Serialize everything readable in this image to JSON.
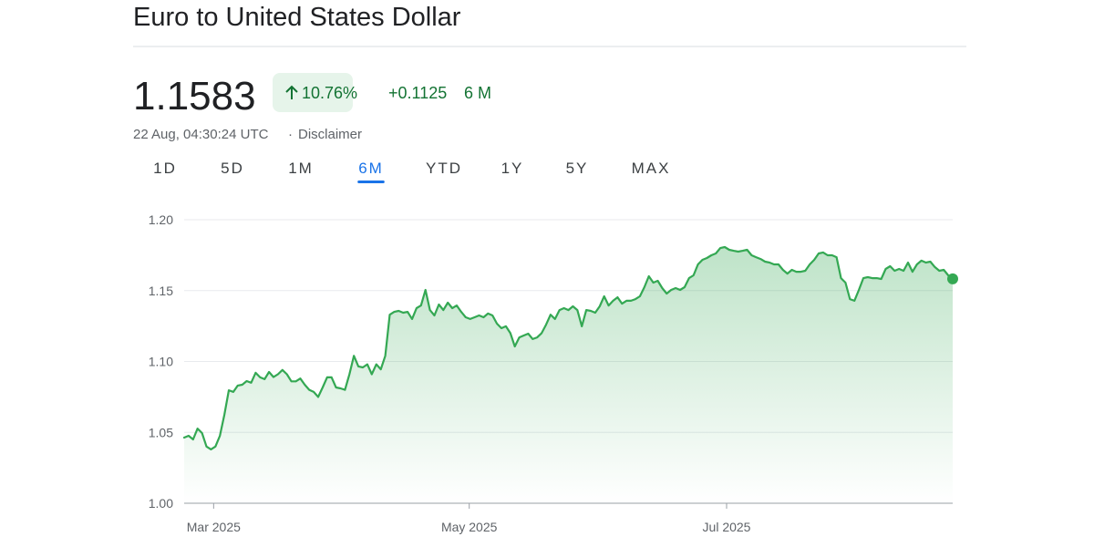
{
  "header": {
    "title": "Euro to United States Dollar",
    "price": "1.1583",
    "change_percent": "10.76%",
    "change_value": "+0.1125",
    "change_period": "6 M",
    "timestamp": "22 Aug, 04:30:24 UTC",
    "disclaimer": "Disclaimer"
  },
  "tabs": {
    "items": [
      "1D",
      "5D",
      "1M",
      "6M",
      "YTD",
      "1Y",
      "5Y",
      "MAX"
    ],
    "active": 3
  },
  "chart_data": {
    "type": "line",
    "color": "#34a853",
    "grid": true,
    "values": [
      1.0463,
      1.0476,
      1.045,
      1.0527,
      1.0495,
      1.04,
      1.038,
      1.04,
      1.0476,
      1.0624,
      1.0797,
      1.0785,
      1.083,
      1.0836,
      1.0862,
      1.085,
      1.092,
      1.0888,
      1.0875,
      1.0926,
      1.089,
      1.091,
      1.094,
      1.091,
      1.086,
      1.086,
      1.088,
      1.0836,
      1.08,
      1.0785,
      1.075,
      1.0817,
      1.0888,
      1.0888,
      1.0817,
      1.081,
      1.08,
      1.091,
      1.104,
      1.0965,
      1.0958,
      1.098,
      1.091,
      1.098,
      1.0945,
      1.104,
      1.133,
      1.135,
      1.1357,
      1.1344,
      1.135,
      1.13,
      1.1376,
      1.1395,
      1.1505,
      1.1363,
      1.1325,
      1.1402,
      1.1363,
      1.1415,
      1.1376,
      1.1395,
      1.135,
      1.1312,
      1.13,
      1.1312,
      1.1325,
      1.1312,
      1.1338,
      1.1325,
      1.1267,
      1.1235,
      1.1248,
      1.12,
      1.1106,
      1.117,
      1.1183,
      1.1196,
      1.1158,
      1.117,
      1.12,
      1.126,
      1.133,
      1.13,
      1.1363,
      1.1376,
      1.1363,
      1.1389,
      1.1363,
      1.1248,
      1.1363,
      1.1357,
      1.1344,
      1.1389,
      1.146,
      1.1395,
      1.1428,
      1.1453,
      1.1408,
      1.1428,
      1.1428,
      1.144,
      1.146,
      1.1524,
      1.1601,
      1.1556,
      1.1569,
      1.1518,
      1.1479,
      1.1505,
      1.1518,
      1.1505,
      1.1524,
      1.1588,
      1.1608,
      1.1685,
      1.1717,
      1.173,
      1.1749,
      1.1762,
      1.18,
      1.1807,
      1.1788,
      1.1781,
      1.1775,
      1.1781,
      1.1788,
      1.1749,
      1.1736,
      1.1723,
      1.1704,
      1.1698,
      1.1685,
      1.1685,
      1.1646,
      1.162,
      1.1646,
      1.1633,
      1.1633,
      1.164,
      1.1685,
      1.1717,
      1.1762,
      1.1769,
      1.1749,
      1.1749,
      1.1736,
      1.1588,
      1.1556,
      1.144,
      1.1428,
      1.1505,
      1.1588,
      1.1595,
      1.1588,
      1.1588,
      1.1582,
      1.1653,
      1.1672,
      1.164,
      1.1653,
      1.164,
      1.1698,
      1.1633,
      1.1685,
      1.1711,
      1.1698,
      1.1704,
      1.1666,
      1.164,
      1.1646,
      1.1608,
      1.1583
    ],
    "xlim": [
      0,
      172
    ],
    "xticks": [
      {
        "value": 6.6,
        "label": "Mar 2025"
      },
      {
        "value": 63.8,
        "label": "May 2025"
      },
      {
        "value": 121.4,
        "label": "Jul 2025"
      }
    ],
    "ylim": [
      1.0,
      1.2
    ],
    "yticks": [
      {
        "value": 1.0,
        "label": "1.00"
      },
      1.05,
      {
        "value": 1.1,
        "label": "1.10"
      },
      1.15,
      {
        "value": 1.2,
        "label": "1.20"
      }
    ]
  }
}
